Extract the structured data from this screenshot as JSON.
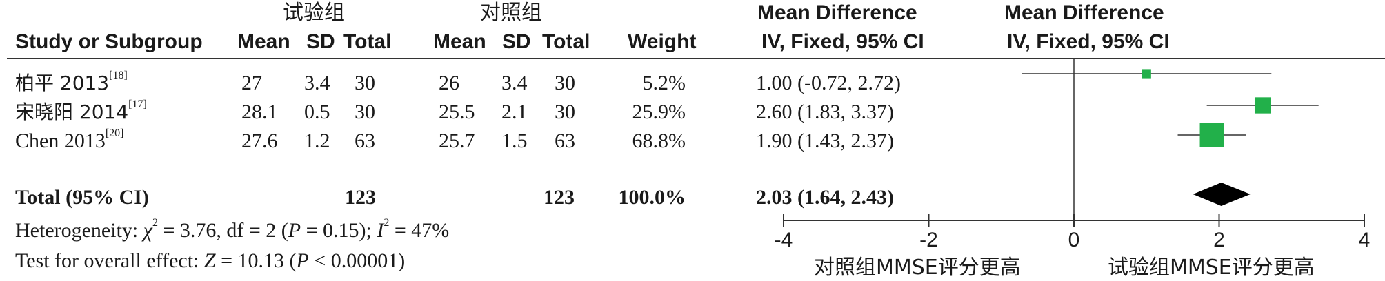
{
  "header": {
    "experimental_group": "试验组",
    "control_group": "对照组",
    "md_title_left": "Mean Difference",
    "md_title_right": "Mean Difference",
    "study_col": "Study or Subgroup",
    "mean": "Mean",
    "sd": "SD",
    "total": "Total",
    "weight": "Weight",
    "md_sub_left": "IV, Fixed, 95% CI",
    "md_sub_right": "IV, Fixed, 95% CI"
  },
  "studies": [
    {
      "name": "柏平 2013",
      "ref": "[18]",
      "exp_mean": "27",
      "exp_sd": "3.4",
      "exp_total": "30",
      "ctl_mean": "26",
      "ctl_sd": "3.4",
      "ctl_total": "30",
      "weight": "5.2%",
      "ci_text": "1.00 (-0.72, 2.72)",
      "md": 1.0,
      "lo": -0.72,
      "hi": 2.72,
      "w": 5.2
    },
    {
      "name": "宋晓阳 2014",
      "ref": "[17]",
      "exp_mean": "28.1",
      "exp_sd": "0.5",
      "exp_total": "30",
      "ctl_mean": "25.5",
      "ctl_sd": "2.1",
      "ctl_total": "30",
      "weight": "25.9%",
      "ci_text": "2.60 (1.83, 3.37)",
      "md": 2.6,
      "lo": 1.83,
      "hi": 3.37,
      "w": 25.9
    },
    {
      "name": "Chen 2013",
      "ref": "[20]",
      "exp_mean": "27.6",
      "exp_sd": "1.2",
      "exp_total": "63",
      "ctl_mean": "25.7",
      "ctl_sd": "1.5",
      "ctl_total": "63",
      "weight": "68.8%",
      "ci_text": "1.90 (1.43, 2.37)",
      "md": 1.9,
      "lo": 1.43,
      "hi": 2.37,
      "w": 68.8
    }
  ],
  "total": {
    "label": "Total (95% CI)",
    "exp_total": "123",
    "ctl_total": "123",
    "weight": "100.0%",
    "ci_text": "2.03 (1.64, 2.43)",
    "md": 2.03,
    "lo": 1.64,
    "hi": 2.43
  },
  "heterogeneity": {
    "prefix": "Heterogeneity: ",
    "chi_sym": "χ",
    "chi_rest": " = 3.76, df = 2 (",
    "p_sym": "P",
    "p_rest": " = 0.15); ",
    "i_sym": "I",
    "i_rest": " = 47%"
  },
  "overall": {
    "prefix": "Test for overall effect: ",
    "z_sym": "Z",
    "z_rest": " = 10.13 (",
    "p_sym": "P",
    "p_rest": " < 0.00001)"
  },
  "axis": {
    "ticks": [
      -4,
      -2,
      0,
      2,
      4
    ],
    "tick_labels": [
      "-4",
      "-2",
      "0",
      "2",
      "4"
    ],
    "label_left": "对照组MMSE评分更高",
    "label_right": "试验组MMSE评分更高"
  },
  "colors": {
    "box": "#22b04a",
    "diamond": "#000000",
    "line": "#333333"
  },
  "chart_data": {
    "type": "forest",
    "x": [
      "柏平 2013",
      "宋晓阳 2014",
      "Chen 2013",
      "Total (95% CI)"
    ],
    "series": [
      {
        "name": "Mean Difference",
        "values": [
          1.0,
          2.6,
          1.9,
          2.03
        ]
      }
    ],
    "ci_lower": [
      -0.72,
      1.83,
      1.43,
      1.64
    ],
    "ci_upper": [
      2.72,
      3.37,
      2.37,
      2.43
    ],
    "weights": [
      5.2,
      25.9,
      68.8,
      100.0
    ],
    "xlim": [
      -4,
      4
    ]
  }
}
